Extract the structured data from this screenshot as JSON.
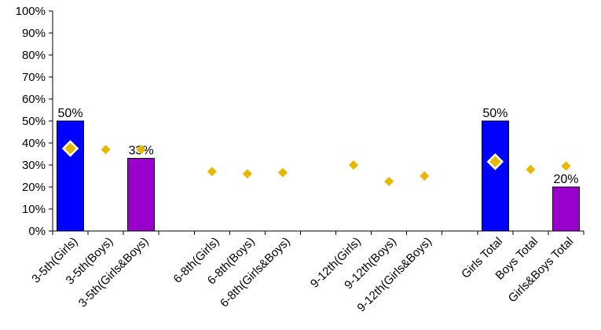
{
  "chart_data": {
    "type": "bar",
    "title": "",
    "xlabel": "",
    "ylabel": "",
    "ylim": [
      0,
      100
    ],
    "y_ticks": [
      "0%",
      "10%",
      "20%",
      "30%",
      "40%",
      "50%",
      "60%",
      "70%",
      "80%",
      "90%",
      "100%"
    ],
    "y_tick_values": [
      0,
      10,
      20,
      30,
      40,
      50,
      60,
      70,
      80,
      90,
      100
    ],
    "categories": [
      "3-5th(Girls)",
      "3-5th(Boys)",
      "3-5th(Girls&Boys)",
      "",
      "6-8th(Girls)",
      "6-8th(Boys)",
      "6-8th(Girls&Boys)",
      "",
      "9-12th(Girls)",
      "9-12th(Boys)",
      "9-12th(Girls&Boys)",
      "",
      "Girls Total",
      "Boys Total",
      "Girls&Boys Total"
    ],
    "series": [
      {
        "type": "bar",
        "values": [
          50,
          null,
          33,
          null,
          null,
          null,
          null,
          null,
          null,
          null,
          null,
          null,
          50,
          null,
          20
        ],
        "labels": [
          "50%",
          "",
          "33%",
          "",
          "",
          "",
          "",
          "",
          "",
          "",
          "",
          "",
          "50%",
          "",
          "20%"
        ],
        "colors": [
          "#0000ff",
          "",
          "#9900cc",
          "",
          "",
          "",
          "",
          "",
          "",
          "",
          "",
          "",
          "#0000ff",
          "",
          "#9900cc"
        ]
      },
      {
        "type": "scatter",
        "marker": "diamond",
        "color": "#e6b800",
        "values": [
          37.5,
          37,
          37,
          null,
          27,
          26,
          26.5,
          null,
          30,
          22.5,
          25,
          null,
          31.5,
          28,
          29.5
        ],
        "highlighted": [
          true,
          false,
          false,
          false,
          false,
          false,
          false,
          false,
          false,
          false,
          false,
          false,
          true,
          false,
          false
        ]
      }
    ],
    "grid": false,
    "legend": "none"
  }
}
